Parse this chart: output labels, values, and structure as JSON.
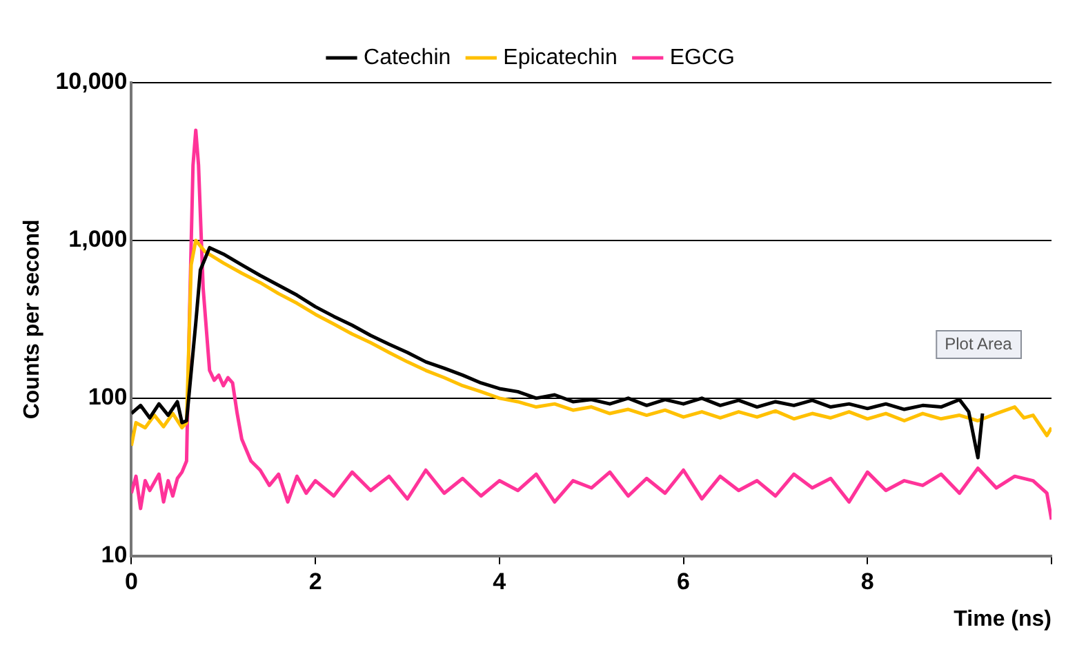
{
  "chart_data": {
    "type": "line",
    "xlabel": "Time (ns)",
    "ylabel": "Counts per second",
    "log": "y",
    "grid": "y",
    "legend": "top",
    "marker": "none",
    "line_style": "solid",
    "xlim": [
      0,
      10
    ],
    "xticks": [
      0,
      2,
      4,
      6,
      8,
      {
        "value": 10,
        "label": null
      }
    ],
    "ylim": [
      10,
      10000
    ],
    "yticks": [
      10,
      100,
      {
        "value": 1000,
        "label": "1,000"
      },
      {
        "value": 10000,
        "label": "10,000"
      }
    ],
    "annotations": [
      "Plot Area"
    ],
    "series": [
      {
        "name": "Catechin",
        "color": "#000000",
        "x": [
          0,
          0.1,
          0.2,
          0.3,
          0.4,
          0.5,
          0.55,
          0.6,
          0.7,
          0.75,
          0.85,
          1.0,
          1.2,
          1.4,
          1.6,
          1.8,
          2.0,
          2.2,
          2.4,
          2.6,
          2.8,
          3.0,
          3.2,
          3.4,
          3.6,
          3.8,
          4.0,
          4.2,
          4.4,
          4.6,
          4.8,
          5.0,
          5.2,
          5.4,
          5.6,
          5.8,
          6.0,
          6.2,
          6.4,
          6.6,
          6.8,
          7.0,
          7.2,
          7.4,
          7.6,
          7.8,
          8.0,
          8.2,
          8.4,
          8.6,
          8.8,
          9.0,
          9.1,
          9.2,
          9.25
        ],
        "values": [
          80,
          90,
          75,
          92,
          78,
          95,
          70,
          72,
          300,
          650,
          900,
          820,
          700,
          600,
          520,
          450,
          380,
          330,
          290,
          250,
          220,
          195,
          170,
          155,
          140,
          125,
          115,
          110,
          100,
          105,
          95,
          98,
          92,
          100,
          90,
          98,
          92,
          100,
          90,
          97,
          88,
          95,
          90,
          97,
          88,
          92,
          86,
          92,
          85,
          90,
          88,
          98,
          82,
          42,
          80
        ]
      },
      {
        "name": "Epicatechin",
        "color": "#ffc000",
        "x": [
          0,
          0.05,
          0.15,
          0.25,
          0.35,
          0.45,
          0.55,
          0.6,
          0.65,
          0.7,
          0.8,
          1.0,
          1.2,
          1.4,
          1.6,
          1.8,
          2.0,
          2.2,
          2.4,
          2.6,
          2.8,
          3.0,
          3.2,
          3.4,
          3.6,
          3.8,
          4.0,
          4.2,
          4.4,
          4.6,
          4.8,
          5.0,
          5.2,
          5.4,
          5.6,
          5.8,
          6.0,
          6.2,
          6.4,
          6.6,
          6.8,
          7.0,
          7.2,
          7.4,
          7.6,
          7.8,
          8.0,
          8.2,
          8.4,
          8.6,
          8.8,
          9.0,
          9.2,
          9.4,
          9.6,
          9.7,
          9.8,
          9.95,
          10
        ],
        "values": [
          50,
          70,
          65,
          78,
          66,
          80,
          65,
          70,
          700,
          1000,
          850,
          720,
          620,
          540,
          460,
          400,
          340,
          295,
          255,
          225,
          195,
          170,
          150,
          135,
          120,
          110,
          100,
          95,
          88,
          92,
          84,
          88,
          80,
          85,
          78,
          84,
          76,
          82,
          75,
          82,
          76,
          83,
          74,
          80,
          75,
          82,
          74,
          80,
          72,
          80,
          74,
          78,
          72,
          80,
          88,
          75,
          78,
          58,
          65
        ]
      },
      {
        "name": "EGCG",
        "color": "#ff3399",
        "x": [
          0,
          0.05,
          0.1,
          0.15,
          0.2,
          0.3,
          0.35,
          0.4,
          0.45,
          0.5,
          0.55,
          0.6,
          0.63,
          0.67,
          0.7,
          0.73,
          0.78,
          0.85,
          0.9,
          0.95,
          1.0,
          1.05,
          1.1,
          1.15,
          1.2,
          1.3,
          1.4,
          1.5,
          1.6,
          1.7,
          1.8,
          1.9,
          2.0,
          2.2,
          2.4,
          2.6,
          2.8,
          3.0,
          3.2,
          3.4,
          3.6,
          3.8,
          4.0,
          4.2,
          4.4,
          4.6,
          4.8,
          5.0,
          5.2,
          5.4,
          5.6,
          5.8,
          6.0,
          6.2,
          6.4,
          6.6,
          6.8,
          7.0,
          7.2,
          7.4,
          7.6,
          7.8,
          8.0,
          8.2,
          8.4,
          8.6,
          8.8,
          9.0,
          9.2,
          9.4,
          9.6,
          9.8,
          9.95,
          10
        ],
        "values": [
          25,
          32,
          20,
          30,
          26,
          33,
          22,
          30,
          24,
          31,
          34,
          40,
          300,
          3000,
          5000,
          3000,
          500,
          150,
          130,
          140,
          120,
          135,
          125,
          80,
          55,
          40,
          35,
          28,
          33,
          22,
          32,
          25,
          30,
          24,
          34,
          26,
          32,
          23,
          35,
          25,
          31,
          24,
          30,
          26,
          33,
          22,
          30,
          27,
          34,
          24,
          31,
          25,
          35,
          23,
          32,
          26,
          30,
          24,
          33,
          27,
          31,
          22,
          34,
          26,
          30,
          28,
          33,
          25,
          36,
          27,
          32,
          30,
          25,
          17
        ]
      }
    ]
  }
}
